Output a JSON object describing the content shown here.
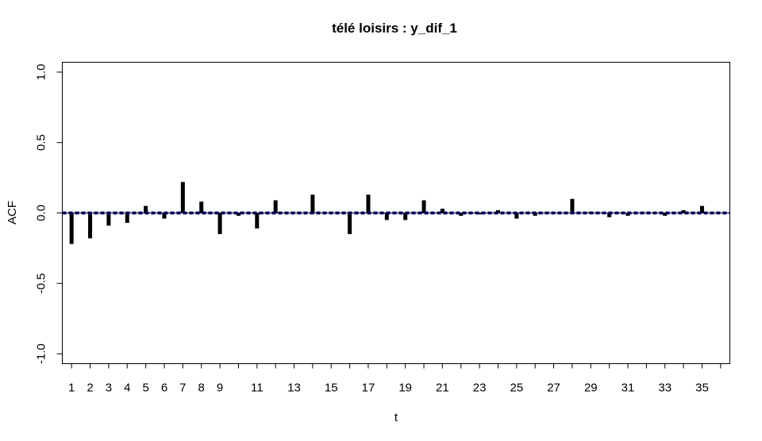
{
  "chart_data": {
    "type": "bar",
    "title": "télé loisirs : y_dif_1",
    "xlabel": "t",
    "ylabel": "ACF",
    "xlim": [
      0.5,
      36.5
    ],
    "ylim": [
      -1.07,
      1.07
    ],
    "x_ticks": [
      1,
      2,
      3,
      4,
      5,
      6,
      7,
      8,
      9,
      10,
      11,
      12,
      13,
      14,
      15,
      16,
      17,
      18,
      19,
      20,
      21,
      22,
      23,
      24,
      25,
      26,
      27,
      28,
      29,
      30,
      31,
      32,
      33,
      34,
      35,
      36
    ],
    "x_tick_labels": [
      "1",
      "2",
      "3",
      "4",
      "5",
      "6",
      "7",
      "8",
      "9",
      "",
      "11",
      "",
      "13",
      "",
      "15",
      "",
      "17",
      "",
      "19",
      "",
      "21",
      "",
      "23",
      "",
      "25",
      "",
      "27",
      "",
      "29",
      "",
      "31",
      "",
      "33",
      "",
      "35",
      ""
    ],
    "y_ticks": [
      -1.0,
      -0.5,
      0.0,
      0.5,
      1.0
    ],
    "y_tick_labels": [
      "-1.0",
      "-0.5",
      "0.0",
      "0.5",
      "1.0"
    ],
    "confidence_band": [
      -0.005,
      0.005
    ],
    "colors": {
      "bars": "#000000",
      "band": "#00008B",
      "zero_line": "#000000"
    },
    "series": [
      {
        "lags": [
          1,
          2,
          3,
          4,
          5,
          6,
          7,
          8,
          9,
          10,
          11,
          12,
          13,
          14,
          15,
          16,
          17,
          18,
          19,
          20,
          21,
          22,
          23,
          24,
          25,
          26,
          27,
          28,
          29,
          30,
          31,
          32,
          33,
          34,
          35,
          36
        ],
        "values": [
          -0.22,
          -0.18,
          -0.09,
          -0.07,
          0.05,
          -0.04,
          0.22,
          0.08,
          -0.15,
          -0.02,
          -0.11,
          0.09,
          0.0,
          0.13,
          0.0,
          -0.15,
          0.13,
          -0.05,
          -0.05,
          0.09,
          0.03,
          -0.02,
          -0.01,
          0.02,
          -0.04,
          -0.02,
          0.0,
          0.1,
          0.01,
          -0.03,
          -0.02,
          0.0,
          -0.02,
          0.02,
          0.05,
          0.0
        ]
      }
    ]
  }
}
